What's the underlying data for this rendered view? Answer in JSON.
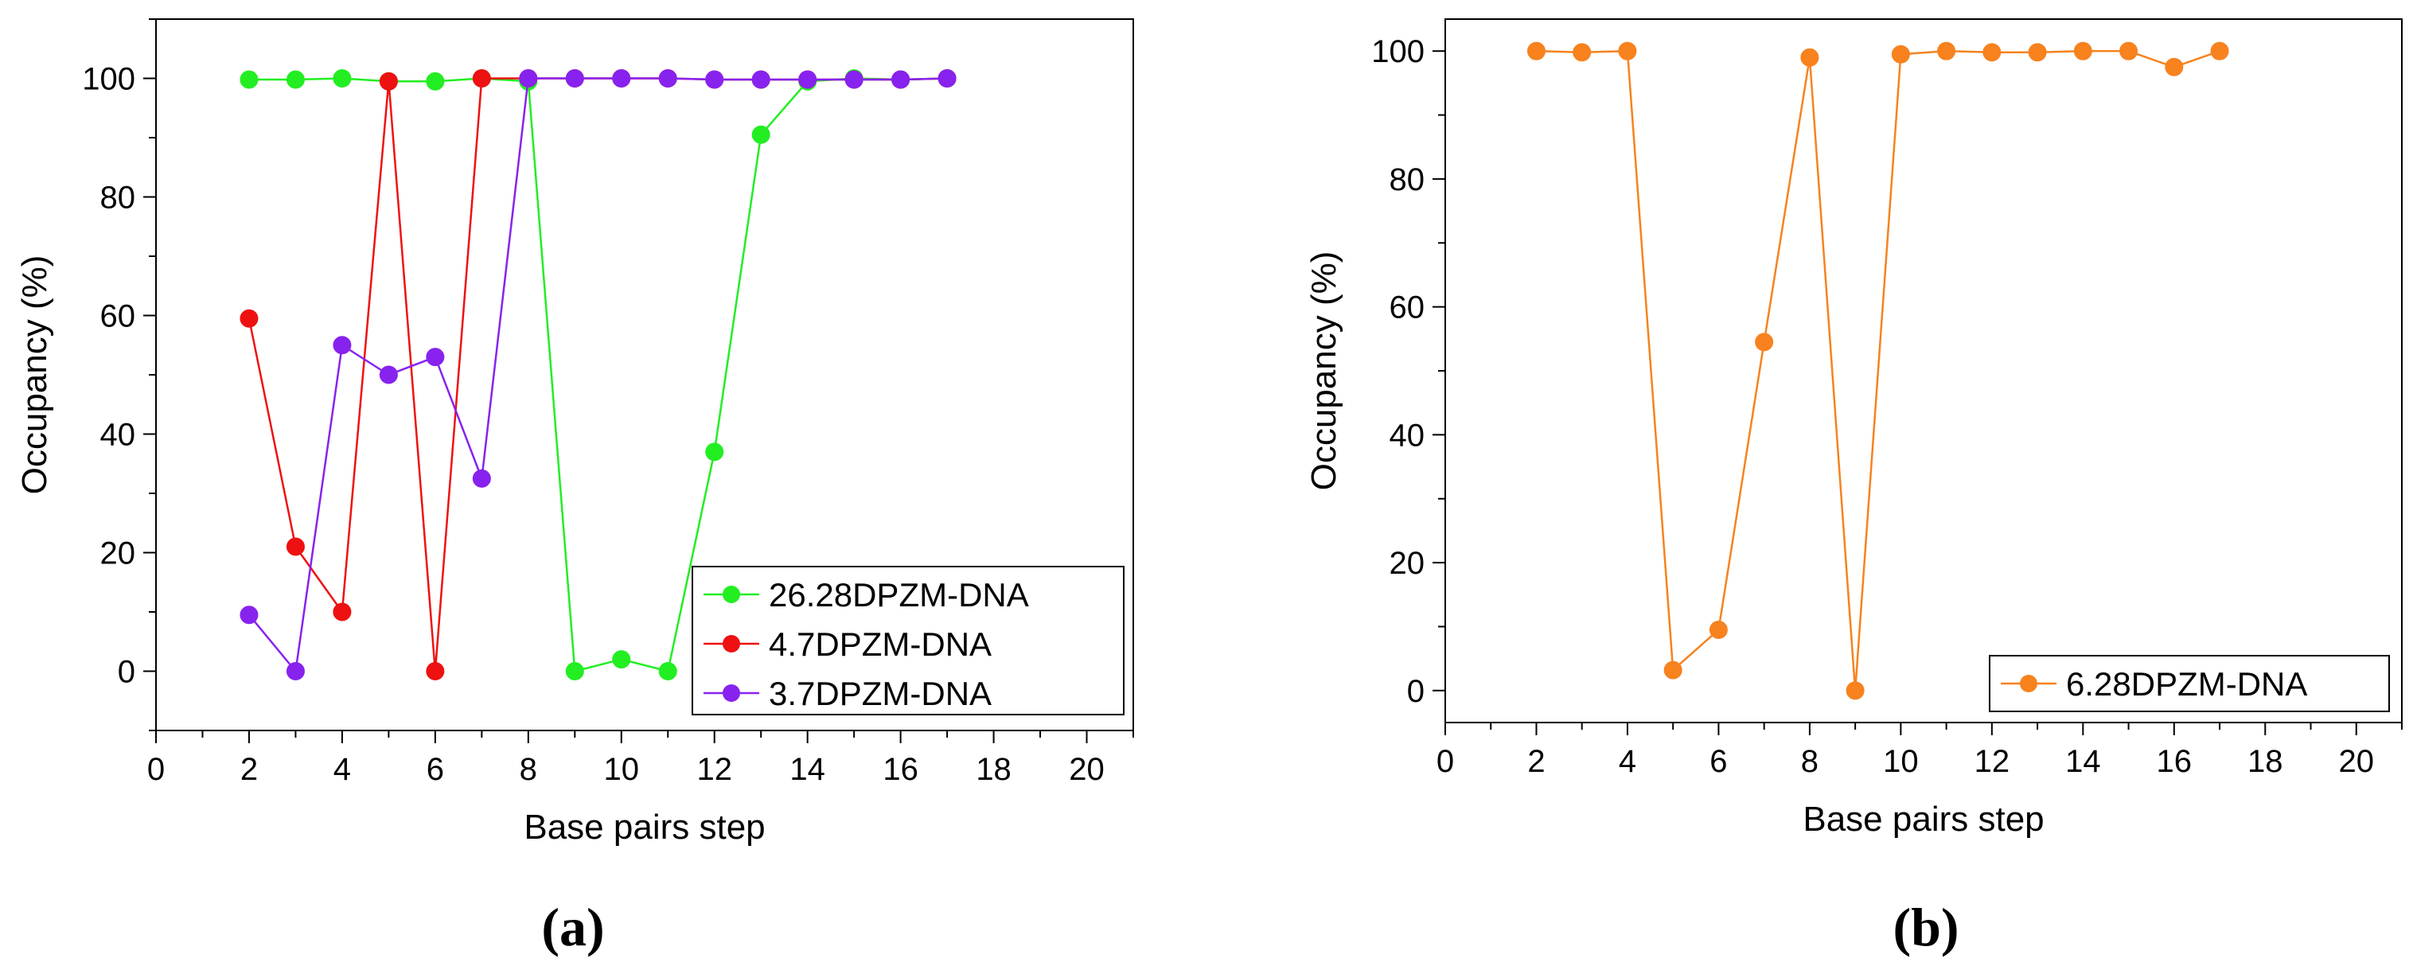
{
  "chart_data": [
    {
      "type": "line",
      "panel_label": "(a)",
      "xlabel": "Base pairs step",
      "ylabel": "Occupancy (%)",
      "xlim": [
        0,
        21
      ],
      "ylim": [
        -10,
        110
      ],
      "xticks": [
        0,
        2,
        4,
        6,
        8,
        10,
        12,
        14,
        16,
        18,
        20
      ],
      "yticks": [
        0,
        20,
        40,
        60,
        80,
        100
      ],
      "grid": false,
      "legend_position": "bottom-right",
      "series": [
        {
          "name": "26.28DPZM-DNA",
          "color": "#22ee22",
          "x": [
            2,
            3,
            4,
            5,
            6,
            7,
            8,
            9,
            10,
            11,
            12,
            13,
            14,
            15,
            16,
            17
          ],
          "y": [
            99.8,
            99.8,
            100,
            99.5,
            99.5,
            100,
            99.5,
            0,
            2,
            0,
            37,
            90.5,
            99.5,
            100,
            99.8,
            100
          ]
        },
        {
          "name": "4.7DPZM-DNA",
          "color": "#ee1111",
          "x": [
            2,
            3,
            4,
            5,
            6,
            7,
            8,
            9,
            10,
            11,
            12,
            13,
            14,
            15,
            16,
            17
          ],
          "y": [
            59.5,
            21,
            10,
            99.5,
            0,
            100,
            100,
            100,
            100,
            100,
            99.8,
            99.8,
            99.8,
            99.8,
            99.8,
            100
          ]
        },
        {
          "name": "3.7DPZM-DNA",
          "color": "#8822ee",
          "x": [
            2,
            3,
            4,
            5,
            6,
            7,
            8,
            9,
            10,
            11,
            12,
            13,
            14,
            15,
            16,
            17
          ],
          "y": [
            9.5,
            0,
            55,
            50,
            53,
            32.5,
            100,
            100,
            100,
            100,
            99.8,
            99.8,
            99.8,
            99.8,
            99.8,
            100
          ]
        }
      ]
    },
    {
      "type": "line",
      "panel_label": "(b)",
      "xlabel": "Base pairs step",
      "ylabel": "Occupancy (%)",
      "xlim": [
        0,
        21
      ],
      "ylim": [
        -5,
        105
      ],
      "xticks": [
        0,
        2,
        4,
        6,
        8,
        10,
        12,
        14,
        16,
        18,
        20
      ],
      "yticks": [
        0,
        20,
        40,
        60,
        80,
        100
      ],
      "grid": false,
      "legend_position": "bottom-right",
      "series": [
        {
          "name": "6.28DPZM-DNA",
          "color": "#f7821e",
          "x": [
            2,
            3,
            4,
            5,
            6,
            7,
            8,
            9,
            10,
            11,
            12,
            13,
            14,
            15,
            16,
            17
          ],
          "y": [
            100,
            99.8,
            100,
            3.2,
            9.5,
            54.5,
            99,
            0,
            99.5,
            100,
            99.8,
            99.8,
            100,
            100,
            97.5,
            100
          ]
        }
      ]
    }
  ]
}
